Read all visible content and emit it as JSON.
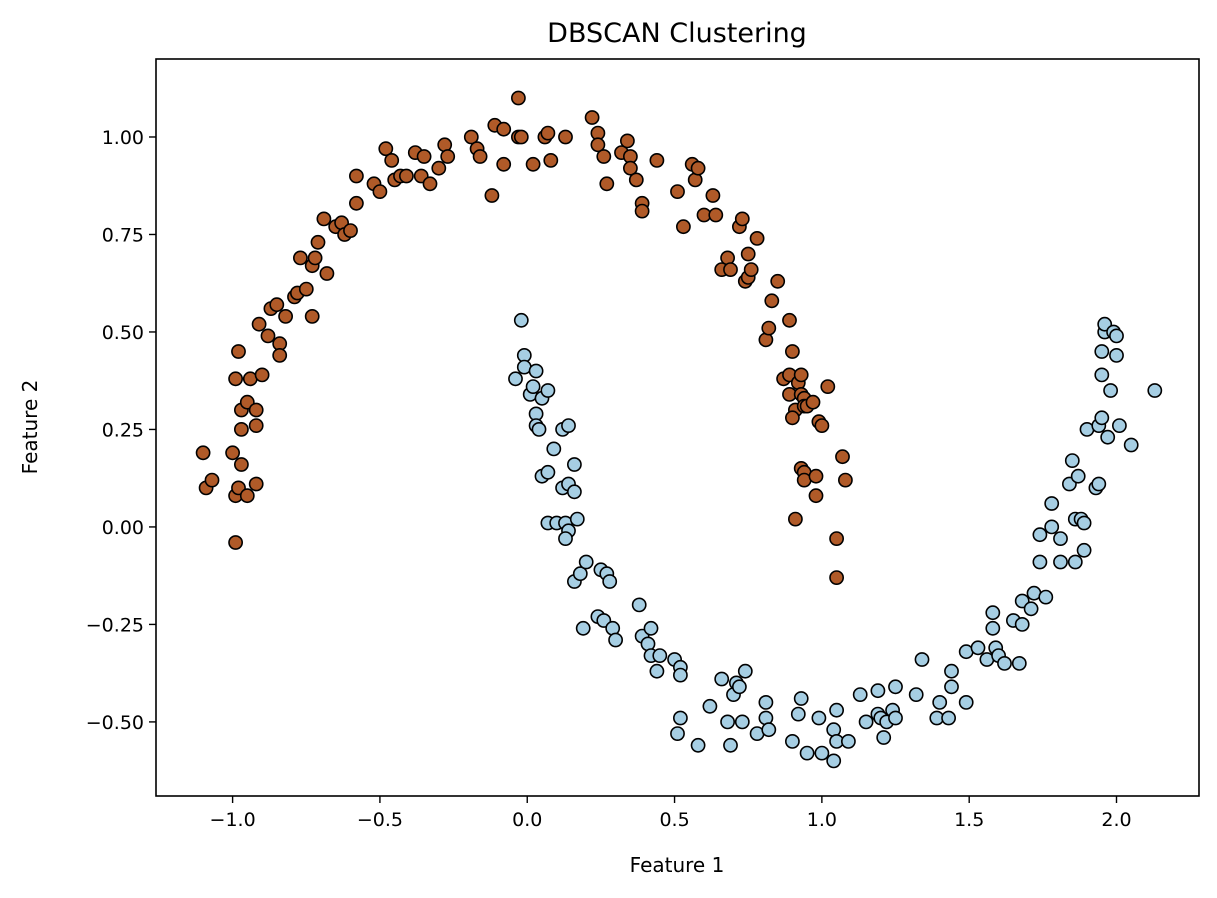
{
  "chart_data": {
    "type": "scatter",
    "title": "DBSCAN Clustering",
    "xlabel": "Feature 1",
    "ylabel": "Feature 2",
    "xlim": [
      -1.26,
      2.28
    ],
    "ylim": [
      -0.69,
      1.2
    ],
    "grid": false,
    "legend": "none",
    "x_ticks": [
      -1.0,
      -0.5,
      0.0,
      0.5,
      1.0,
      1.5,
      2.0
    ],
    "x_tick_labels": [
      "−1.0",
      "−0.5",
      "0.0",
      "0.5",
      "1.0",
      "1.5",
      "2.0"
    ],
    "y_ticks": [
      -0.5,
      -0.25,
      0.0,
      0.25,
      0.5,
      0.75,
      1.0
    ],
    "y_tick_labels": [
      "−0.50",
      "−0.25",
      "0.00",
      "0.25",
      "0.50",
      "0.75",
      "1.00"
    ],
    "series": [
      {
        "color": "#b05a28",
        "edge_color": "#000000",
        "points": [
          [
            -1.1,
            0.19
          ],
          [
            -1.09,
            0.1
          ],
          [
            -1.07,
            0.12
          ],
          [
            -1.0,
            0.19
          ],
          [
            -0.99,
            0.38
          ],
          [
            -0.98,
            0.45
          ],
          [
            -0.99,
            -0.04
          ],
          [
            -0.99,
            0.08
          ],
          [
            -0.98,
            0.1
          ],
          [
            -0.97,
            0.16
          ],
          [
            -0.97,
            0.25
          ],
          [
            -0.97,
            0.3
          ],
          [
            -0.95,
            0.32
          ],
          [
            -0.95,
            0.08
          ],
          [
            -0.94,
            0.38
          ],
          [
            -0.92,
            0.3
          ],
          [
            -0.92,
            0.26
          ],
          [
            -0.92,
            0.11
          ],
          [
            -0.9,
            0.39
          ],
          [
            -0.91,
            0.52
          ],
          [
            -0.88,
            0.49
          ],
          [
            -0.87,
            0.56
          ],
          [
            -0.85,
            0.57
          ],
          [
            -0.84,
            0.47
          ],
          [
            -0.84,
            0.44
          ],
          [
            -0.82,
            0.54
          ],
          [
            -0.79,
            0.59
          ],
          [
            -0.78,
            0.6
          ],
          [
            -0.77,
            0.69
          ],
          [
            -0.75,
            0.61
          ],
          [
            -0.73,
            0.67
          ],
          [
            -0.72,
            0.69
          ],
          [
            -0.73,
            0.54
          ],
          [
            -0.71,
            0.73
          ],
          [
            -0.69,
            0.79
          ],
          [
            -0.68,
            0.65
          ],
          [
            -0.65,
            0.77
          ],
          [
            -0.63,
            0.78
          ],
          [
            -0.62,
            0.75
          ],
          [
            -0.6,
            0.76
          ],
          [
            -0.58,
            0.83
          ],
          [
            -0.58,
            0.9
          ],
          [
            -0.52,
            0.88
          ],
          [
            -0.5,
            0.86
          ],
          [
            -0.48,
            0.97
          ],
          [
            -0.46,
            0.94
          ],
          [
            -0.45,
            0.89
          ],
          [
            -0.43,
            0.9
          ],
          [
            -0.41,
            0.9
          ],
          [
            -0.38,
            0.96
          ],
          [
            -0.36,
            0.9
          ],
          [
            -0.35,
            0.95
          ],
          [
            -0.33,
            0.88
          ],
          [
            -0.3,
            0.92
          ],
          [
            -0.28,
            0.98
          ],
          [
            -0.27,
            0.95
          ],
          [
            -0.19,
            1.0
          ],
          [
            -0.17,
            0.97
          ],
          [
            -0.16,
            0.95
          ],
          [
            -0.12,
            0.85
          ],
          [
            -0.11,
            1.03
          ],
          [
            -0.08,
            0.93
          ],
          [
            -0.08,
            1.02
          ],
          [
            -0.03,
            1.0
          ],
          [
            -0.03,
            1.1
          ],
          [
            -0.02,
            1.0
          ],
          [
            0.02,
            0.93
          ],
          [
            0.06,
            1.0
          ],
          [
            0.07,
            1.01
          ],
          [
            0.08,
            0.94
          ],
          [
            0.13,
            1.0
          ],
          [
            0.22,
            1.05
          ],
          [
            0.24,
            1.01
          ],
          [
            0.24,
            0.98
          ],
          [
            0.26,
            0.95
          ],
          [
            0.27,
            0.88
          ],
          [
            0.32,
            0.96
          ],
          [
            0.34,
            0.99
          ],
          [
            0.35,
            0.95
          ],
          [
            0.35,
            0.92
          ],
          [
            0.37,
            0.89
          ],
          [
            0.39,
            0.83
          ],
          [
            0.39,
            0.81
          ],
          [
            0.44,
            0.94
          ],
          [
            0.51,
            0.86
          ],
          [
            0.53,
            0.77
          ],
          [
            0.56,
            0.93
          ],
          [
            0.57,
            0.89
          ],
          [
            0.58,
            0.92
          ],
          [
            0.6,
            0.8
          ],
          [
            0.63,
            0.85
          ],
          [
            0.64,
            0.8
          ],
          [
            0.66,
            0.66
          ],
          [
            0.68,
            0.69
          ],
          [
            0.69,
            0.66
          ],
          [
            0.72,
            0.77
          ],
          [
            0.73,
            0.79
          ],
          [
            0.74,
            0.63
          ],
          [
            0.75,
            0.7
          ],
          [
            0.75,
            0.64
          ],
          [
            0.76,
            0.66
          ],
          [
            0.78,
            0.74
          ],
          [
            0.81,
            0.48
          ],
          [
            0.82,
            0.51
          ],
          [
            0.83,
            0.58
          ],
          [
            0.85,
            0.63
          ],
          [
            0.87,
            0.38
          ],
          [
            0.89,
            0.39
          ],
          [
            0.89,
            0.53
          ],
          [
            0.9,
            0.45
          ],
          [
            0.89,
            0.34
          ],
          [
            0.91,
            0.3
          ],
          [
            0.9,
            0.28
          ],
          [
            0.92,
            0.37
          ],
          [
            0.93,
            0.34
          ],
          [
            0.93,
            0.39
          ],
          [
            0.94,
            0.33
          ],
          [
            0.94,
            0.31
          ],
          [
            0.93,
            0.15
          ],
          [
            0.94,
            0.14
          ],
          [
            0.94,
            0.12
          ],
          [
            0.95,
            0.31
          ],
          [
            0.97,
            0.32
          ],
          [
            0.99,
            0.27
          ],
          [
            1.0,
            0.26
          ],
          [
            1.02,
            0.36
          ],
          [
            0.98,
            0.13
          ],
          [
            0.98,
            0.08
          ],
          [
            0.91,
            0.02
          ],
          [
            1.05,
            -0.03
          ],
          [
            1.05,
            -0.13
          ],
          [
            1.07,
            0.18
          ],
          [
            1.08,
            0.12
          ]
        ]
      },
      {
        "color": "#a6cee3",
        "edge_color": "#000000",
        "points": [
          [
            -0.04,
            0.38
          ],
          [
            -0.02,
            0.53
          ],
          [
            -0.01,
            0.44
          ],
          [
            -0.01,
            0.41
          ],
          [
            0.01,
            0.34
          ],
          [
            0.02,
            0.36
          ],
          [
            0.03,
            0.4
          ],
          [
            0.03,
            0.29
          ],
          [
            0.03,
            0.26
          ],
          [
            0.04,
            0.25
          ],
          [
            0.05,
            0.33
          ],
          [
            0.07,
            0.35
          ],
          [
            0.05,
            0.13
          ],
          [
            0.07,
            0.14
          ],
          [
            0.09,
            0.2
          ],
          [
            0.07,
            0.01
          ],
          [
            0.1,
            0.01
          ],
          [
            0.12,
            0.1
          ],
          [
            0.12,
            0.25
          ],
          [
            0.14,
            0.26
          ],
          [
            0.13,
            0.01
          ],
          [
            0.14,
            -0.01
          ],
          [
            0.13,
            -0.03
          ],
          [
            0.14,
            0.11
          ],
          [
            0.16,
            0.09
          ],
          [
            0.16,
            0.16
          ],
          [
            0.17,
            0.02
          ],
          [
            0.16,
            -0.14
          ],
          [
            0.18,
            -0.12
          ],
          [
            0.2,
            -0.09
          ],
          [
            0.19,
            -0.26
          ],
          [
            0.24,
            -0.23
          ],
          [
            0.25,
            -0.11
          ],
          [
            0.26,
            -0.24
          ],
          [
            0.27,
            -0.12
          ],
          [
            0.28,
            -0.14
          ],
          [
            0.29,
            -0.26
          ],
          [
            0.3,
            -0.29
          ],
          [
            0.38,
            -0.2
          ],
          [
            0.39,
            -0.28
          ],
          [
            0.41,
            -0.3
          ],
          [
            0.42,
            -0.33
          ],
          [
            0.42,
            -0.26
          ],
          [
            0.44,
            -0.37
          ],
          [
            0.45,
            -0.33
          ],
          [
            0.5,
            -0.34
          ],
          [
            0.52,
            -0.36
          ],
          [
            0.52,
            -0.38
          ],
          [
            0.52,
            -0.49
          ],
          [
            0.51,
            -0.53
          ],
          [
            0.58,
            -0.56
          ],
          [
            0.62,
            -0.46
          ],
          [
            0.66,
            -0.39
          ],
          [
            0.68,
            -0.5
          ],
          [
            0.69,
            -0.56
          ],
          [
            0.7,
            -0.43
          ],
          [
            0.71,
            -0.4
          ],
          [
            0.72,
            -0.41
          ],
          [
            0.74,
            -0.37
          ],
          [
            0.73,
            -0.5
          ],
          [
            0.78,
            -0.53
          ],
          [
            0.81,
            -0.49
          ],
          [
            0.81,
            -0.45
          ],
          [
            0.82,
            -0.52
          ],
          [
            0.9,
            -0.55
          ],
          [
            0.92,
            -0.48
          ],
          [
            0.93,
            -0.44
          ],
          [
            0.95,
            -0.58
          ],
          [
            0.99,
            -0.49
          ],
          [
            1.0,
            -0.58
          ],
          [
            1.04,
            -0.52
          ],
          [
            1.05,
            -0.47
          ],
          [
            1.05,
            -0.55
          ],
          [
            1.04,
            -0.6
          ],
          [
            1.09,
            -0.55
          ],
          [
            1.13,
            -0.43
          ],
          [
            1.15,
            -0.5
          ],
          [
            1.19,
            -0.48
          ],
          [
            1.19,
            -0.42
          ],
          [
            1.2,
            -0.49
          ],
          [
            1.21,
            -0.54
          ],
          [
            1.22,
            -0.5
          ],
          [
            1.24,
            -0.47
          ],
          [
            1.25,
            -0.49
          ],
          [
            1.25,
            -0.41
          ],
          [
            1.32,
            -0.43
          ],
          [
            1.34,
            -0.34
          ],
          [
            1.39,
            -0.49
          ],
          [
            1.4,
            -0.45
          ],
          [
            1.43,
            -0.49
          ],
          [
            1.44,
            -0.41
          ],
          [
            1.44,
            -0.37
          ],
          [
            1.49,
            -0.32
          ],
          [
            1.49,
            -0.45
          ],
          [
            1.53,
            -0.31
          ],
          [
            1.56,
            -0.34
          ],
          [
            1.58,
            -0.22
          ],
          [
            1.58,
            -0.26
          ],
          [
            1.59,
            -0.31
          ],
          [
            1.6,
            -0.33
          ],
          [
            1.62,
            -0.35
          ],
          [
            1.65,
            -0.24
          ],
          [
            1.67,
            -0.35
          ],
          [
            1.68,
            -0.25
          ],
          [
            1.68,
            -0.19
          ],
          [
            1.71,
            -0.21
          ],
          [
            1.72,
            -0.17
          ],
          [
            1.74,
            -0.02
          ],
          [
            1.74,
            -0.09
          ],
          [
            1.76,
            -0.18
          ],
          [
            1.78,
            0.0
          ],
          [
            1.78,
            0.06
          ],
          [
            1.81,
            -0.03
          ],
          [
            1.81,
            -0.09
          ],
          [
            1.84,
            0.11
          ],
          [
            1.85,
            0.17
          ],
          [
            1.86,
            0.02
          ],
          [
            1.86,
            -0.09
          ],
          [
            1.87,
            0.13
          ],
          [
            1.88,
            0.02
          ],
          [
            1.89,
            0.01
          ],
          [
            1.89,
            -0.06
          ],
          [
            1.9,
            0.25
          ],
          [
            1.93,
            0.1
          ],
          [
            1.94,
            0.11
          ],
          [
            1.94,
            0.26
          ],
          [
            1.95,
            0.28
          ],
          [
            1.95,
            0.39
          ],
          [
            1.95,
            0.45
          ],
          [
            1.96,
            0.5
          ],
          [
            1.96,
            0.52
          ],
          [
            1.97,
            0.23
          ],
          [
            1.98,
            0.35
          ],
          [
            1.99,
            0.5
          ],
          [
            2.0,
            0.44
          ],
          [
            2.0,
            0.49
          ],
          [
            2.01,
            0.26
          ],
          [
            2.05,
            0.21
          ],
          [
            2.13,
            0.35
          ]
        ]
      }
    ]
  }
}
